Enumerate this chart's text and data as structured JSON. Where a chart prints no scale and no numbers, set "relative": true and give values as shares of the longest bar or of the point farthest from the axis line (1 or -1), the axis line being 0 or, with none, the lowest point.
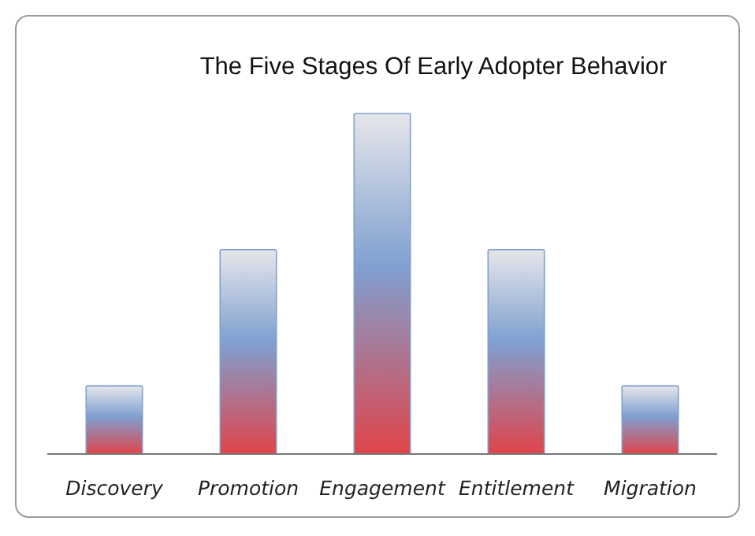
{
  "chart_data": {
    "type": "bar",
    "title": "The Five Stages Of Early Adopter Behavior",
    "categories": [
      "Discovery",
      "Promotion",
      "Engagement",
      "Entitlement",
      "Migration"
    ],
    "values": [
      0.2,
      0.6,
      1,
      0.6,
      0.2
    ],
    "color": "#7fa0d0",
    "relative": true
  }
}
